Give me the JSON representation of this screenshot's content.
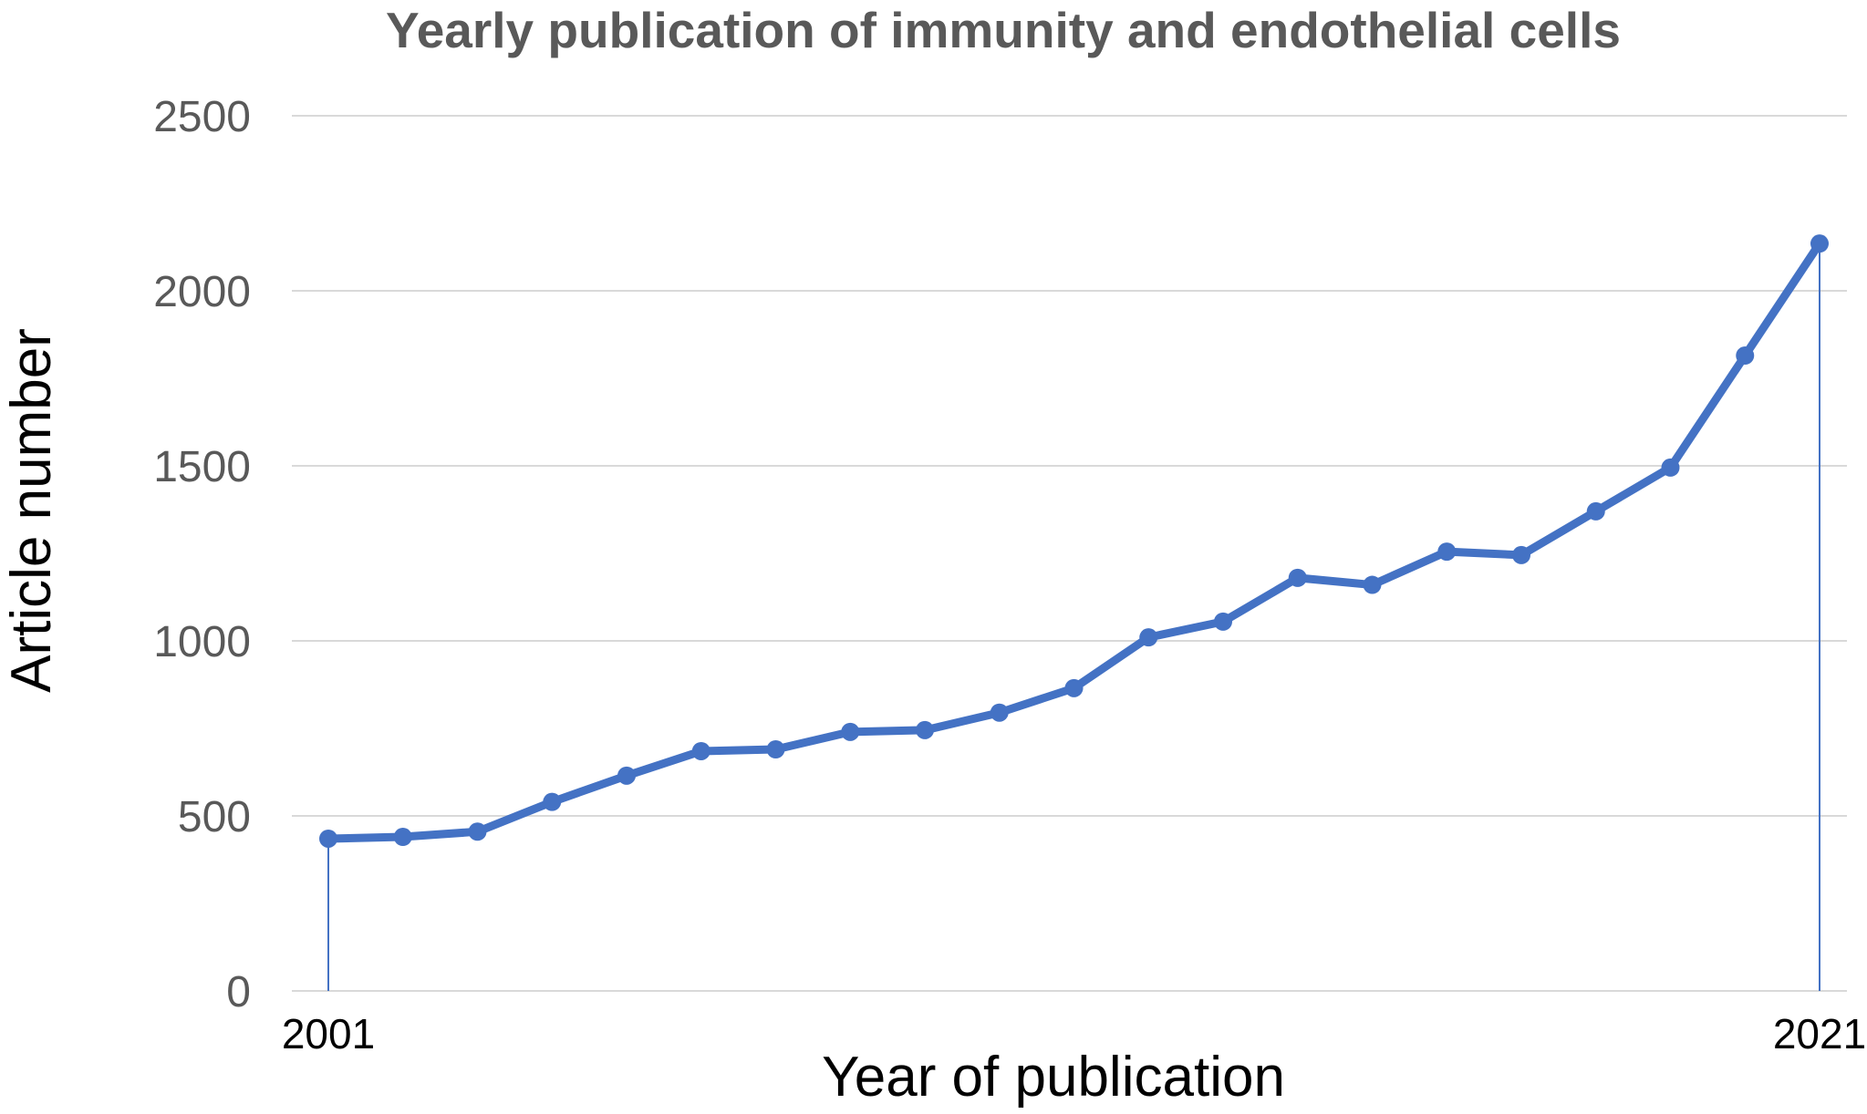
{
  "chart_data": {
    "type": "line",
    "title": "Yearly publication of immunity and endothelial cells",
    "xlabel": "Year of publication",
    "ylabel": "Article number",
    "x": [
      2001,
      2002,
      2003,
      2004,
      2005,
      2006,
      2007,
      2008,
      2009,
      2010,
      2011,
      2012,
      2013,
      2014,
      2015,
      2016,
      2017,
      2018,
      2019,
      2020,
      2021
    ],
    "x_tick_labels": [
      "2001",
      "2021"
    ],
    "series": [
      {
        "values": [
          435,
          440,
          455,
          540,
          615,
          685,
          690,
          740,
          745,
          795,
          865,
          1010,
          1055,
          1180,
          1160,
          1255,
          1245,
          1370,
          1495,
          1815,
          2135
        ],
        "color": "#4472c4"
      }
    ],
    "ylim": [
      0,
      2500
    ],
    "y_ticks": [
      0,
      500,
      1000,
      1500,
      2000,
      2500
    ],
    "grid": true,
    "legend": "none",
    "drop_lines": true
  }
}
